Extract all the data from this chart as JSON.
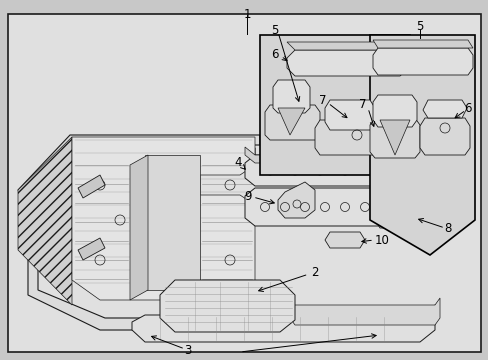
{
  "figsize": [
    4.89,
    3.6
  ],
  "dpi": 100,
  "bg_outer": "#c8c8c8",
  "bg_inner": "#d8d8d8",
  "border_color": "#000000",
  "line_color": "#1a1a1a",
  "hatch_color": "#555555",
  "part_fill": "#e8e8e8",
  "part_fill_dark": "#c8c8c8",
  "inset_fill": "#d8d8d8",
  "label_fontsize": 8.5,
  "label_color": "#000000",
  "annotation_lw": 0.6,
  "part_lw": 0.6
}
